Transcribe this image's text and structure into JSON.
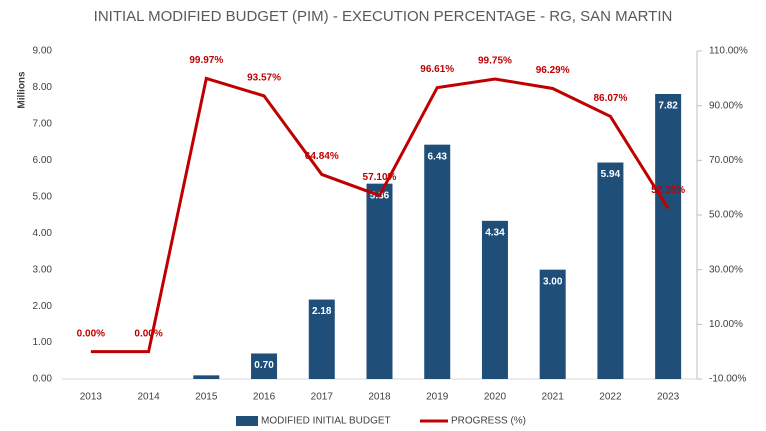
{
  "chart_data": {
    "type": "bar",
    "title": "INITIAL MODIFIED BUDGET (PIM) - EXECUTION PERCENTAGE - RG, SAN MARTIN",
    "ylabel": "Millions",
    "categories": [
      "2013",
      "2014",
      "2015",
      "2016",
      "2017",
      "2018",
      "2019",
      "2020",
      "2021",
      "2022",
      "2023"
    ],
    "series": [
      {
        "name": "MODIFIED INITIAL BUDGET",
        "type": "bar",
        "color": "#1f4e79",
        "values": [
          0,
          0,
          0.1,
          0.7,
          2.18,
          5.36,
          6.43,
          4.34,
          3.0,
          5.94,
          7.82
        ],
        "value_labels": [
          null,
          null,
          null,
          "0.70",
          "2.18",
          "5.36",
          "6.43",
          "4.34",
          "3.00",
          "5.94",
          "7.82"
        ]
      },
      {
        "name": "PROGRESS (%)",
        "type": "line",
        "axis": "y2",
        "color": "#c00000",
        "values": [
          0,
          0,
          99.97,
          93.57,
          64.84,
          57.1,
          96.61,
          99.75,
          96.29,
          86.07,
          52.35
        ],
        "value_labels": [
          "0.00%",
          "0.00%",
          "99.97%",
          "93.57%",
          "64.84%",
          "57.10%",
          "96.61%",
          "99.75%",
          "96.29%",
          "86.07%",
          "52.35%"
        ]
      }
    ],
    "ylim": [
      0,
      9
    ],
    "yticks": [
      {
        "value": 0,
        "label": "0.00"
      },
      {
        "value": 1,
        "label": "1.00"
      },
      {
        "value": 2,
        "label": "2.00"
      },
      {
        "value": 3,
        "label": "3.00"
      },
      {
        "value": 4,
        "label": "4.00"
      },
      {
        "value": 5,
        "label": "5.00"
      },
      {
        "value": 6,
        "label": "6.00"
      },
      {
        "value": 7,
        "label": "7.00"
      },
      {
        "value": 8,
        "label": "8.00"
      },
      {
        "value": 9,
        "label": "9.00"
      }
    ],
    "y2lim": [
      -10,
      110
    ],
    "y2ticks": [
      {
        "value": -10,
        "label": "-10.00%"
      },
      {
        "value": 10,
        "label": "10.00%"
      },
      {
        "value": 30,
        "label": "30.00%"
      },
      {
        "value": 50,
        "label": "50.00%"
      },
      {
        "value": 70,
        "label": "70.00%"
      },
      {
        "value": 90,
        "label": "90.00%"
      },
      {
        "value": 110,
        "label": "110.00%"
      }
    ]
  }
}
